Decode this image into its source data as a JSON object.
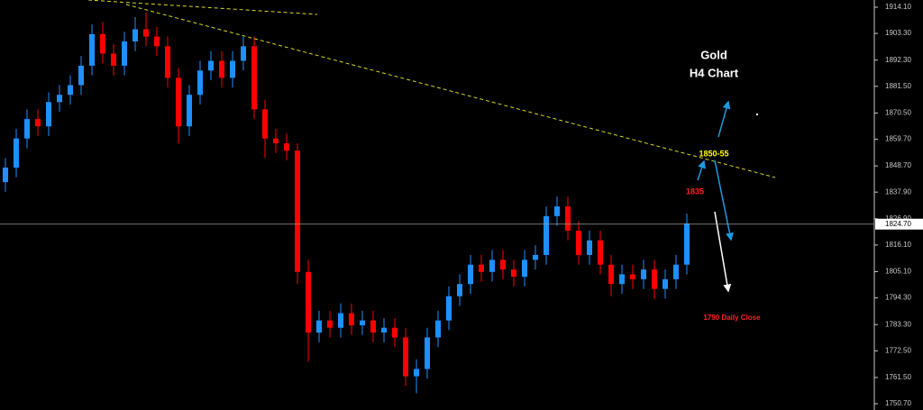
{
  "chart_data": {
    "type": "candlestick",
    "title": "Gold",
    "subtitle": "H4 Chart",
    "annotations": [
      "1850-55",
      "1835",
      "1790 Daily Close"
    ],
    "up_color": "#1e90ff",
    "down_color": "#ff0000",
    "open": [
      1842,
      1848,
      1860,
      1868,
      1865,
      1875,
      1878,
      1882,
      1890,
      1903,
      1895,
      1890,
      1900,
      1905,
      1902,
      1898,
      1885,
      1865,
      1878,
      1888,
      1892,
      1885,
      1892,
      1898,
      1872,
      1860,
      1858,
      1855,
      1805,
      1780,
      1785,
      1782,
      1788,
      1783,
      1785,
      1780,
      1782,
      1778,
      1762,
      1765,
      1778,
      1785,
      1795,
      1800,
      1808,
      1805,
      1810,
      1806,
      1803,
      1810,
      1812,
      1828,
      1832,
      1822,
      1812,
      1818,
      1808,
      1800,
      1804,
      1802,
      1806,
      1798,
      1802,
      1808
    ],
    "high": [
      1852,
      1864,
      1872,
      1872,
      1879,
      1882,
      1886,
      1894,
      1907,
      1908,
      1899,
      1904,
      1910,
      1912,
      1906,
      1902,
      1889,
      1882,
      1892,
      1896,
      1896,
      1896,
      1902,
      1902,
      1876,
      1864,
      1862,
      1858,
      1810,
      1789,
      1789,
      1792,
      1792,
      1789,
      1789,
      1786,
      1786,
      1782,
      1769,
      1782,
      1789,
      1799,
      1804,
      1812,
      1812,
      1814,
      1814,
      1810,
      1814,
      1816,
      1832,
      1836,
      1836,
      1826,
      1822,
      1822,
      1812,
      1808,
      1808,
      1810,
      1810,
      1806,
      1812,
      1829
    ],
    "low": [
      1838,
      1844,
      1856,
      1861,
      1861,
      1871,
      1874,
      1878,
      1886,
      1891,
      1886,
      1886,
      1896,
      1898,
      1894,
      1881,
      1858,
      1861,
      1874,
      1884,
      1881,
      1881,
      1888,
      1868,
      1852,
      1854,
      1851,
      1800,
      1768,
      1776,
      1778,
      1778,
      1779,
      1779,
      1776,
      1776,
      1774,
      1758,
      1755,
      1761,
      1774,
      1781,
      1791,
      1796,
      1801,
      1801,
      1802,
      1799,
      1799,
      1806,
      1808,
      1824,
      1818,
      1808,
      1808,
      1804,
      1795,
      1796,
      1798,
      1798,
      1794,
      1794,
      1798,
      1804
    ],
    "close": [
      1848,
      1860,
      1868,
      1865,
      1875,
      1878,
      1882,
      1890,
      1903,
      1895,
      1890,
      1900,
      1905,
      1902,
      1898,
      1885,
      1865,
      1878,
      1888,
      1892,
      1885,
      1892,
      1898,
      1872,
      1860,
      1858,
      1855,
      1805,
      1780,
      1785,
      1782,
      1788,
      1783,
      1785,
      1780,
      1782,
      1778,
      1762,
      1765,
      1778,
      1785,
      1795,
      1800,
      1808,
      1805,
      1810,
      1806,
      1803,
      1810,
      1812,
      1828,
      1832,
      1822,
      1812,
      1818,
      1808,
      1800,
      1804,
      1802,
      1806,
      1798,
      1802,
      1808,
      1825
    ],
    "last_price": {
      "value": 1824.7,
      "label": "1824.70"
    },
    "ylim": [
      1748.1,
      1917.07
    ],
    "yticks": [
      {
        "value": 1914.1,
        "label": "1914.10"
      },
      {
        "value": 1903.3,
        "label": "1903.30"
      },
      {
        "value": 1892.3,
        "label": "1892.30"
      },
      {
        "value": 1881.5,
        "label": "1881.50"
      },
      {
        "value": 1870.5,
        "label": "1870.50"
      },
      {
        "value": 1859.7,
        "label": "1859.70"
      },
      {
        "value": 1848.7,
        "label": "1848.70"
      },
      {
        "value": 1837.9,
        "label": "1837.90"
      },
      {
        "value": 1826.9,
        "label": "1826.90"
      },
      {
        "value": 1816.1,
        "label": "1816.10"
      },
      {
        "value": 1805.1,
        "label": "1805.10"
      },
      {
        "value": 1794.3,
        "label": "1794.30"
      },
      {
        "value": 1783.3,
        "label": "1783.30"
      },
      {
        "value": 1772.5,
        "label": "1772.50"
      },
      {
        "value": 1761.5,
        "label": "1761.50"
      },
      {
        "value": 1750.7,
        "label": "1750.70"
      }
    ]
  }
}
